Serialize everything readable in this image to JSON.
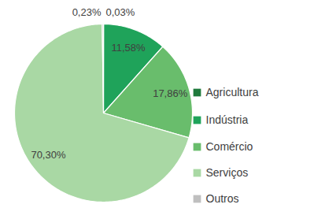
{
  "chart_data": {
    "type": "pie",
    "categories": [
      "Agricultura",
      "Indústria",
      "Comércio",
      "Serviços",
      "Outros"
    ],
    "values": [
      0.03,
      11.58,
      17.86,
      70.3,
      0.23
    ],
    "value_labels": [
      "0,03%",
      "11,58%",
      "17,86%",
      "70,30%",
      "0,23%"
    ],
    "colors": [
      "#1f7a3c",
      "#1fa35a",
      "#69bd6c",
      "#a9d8a4",
      "#bfbfbf"
    ],
    "data_labels": true,
    "legend": "right"
  }
}
